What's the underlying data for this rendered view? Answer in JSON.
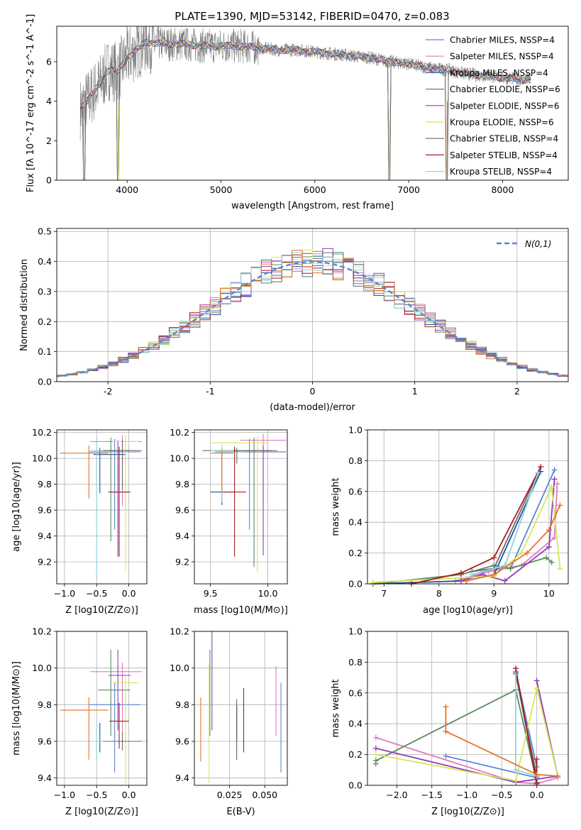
{
  "title": "PLATE=1390, MJD=53142, FIBERID=0470, z=0.083",
  "colors": [
    "#5b84d6",
    "#e377c2",
    "#1f4e9c",
    "#5a8a5e",
    "#8e3fb3",
    "#d7e558",
    "#6a6a6a",
    "#a81c1c",
    "#8fd4e0",
    "#e3762a"
  ],
  "chart_data": [
    {
      "type": "line",
      "id": "spectrum",
      "xlabel": "wavelength [Angstrom, rest frame]",
      "ylabel": "Flux [f_λ 10^-17 erg cm^-2 s^-1 A^-1]",
      "xlim": [
        3250,
        8700
      ],
      "ylim": [
        0,
        7.8
      ],
      "xticks": [
        4000,
        5000,
        6000,
        7000,
        8000
      ],
      "yticks": [
        0,
        2,
        4,
        6
      ],
      "grid": false,
      "legend_position": "right",
      "series": [
        {
          "name": "Chabrier MILES, N_SSP=4",
          "color": "#5b84d6"
        },
        {
          "name": "Salpeter MILES, N_SSP=4",
          "color": "#e377c2"
        },
        {
          "name": "Kroupa MILES, N_SSP=4",
          "color": "#3a66c0"
        },
        {
          "name": "Chabrier ELODIE, N_SSP=6",
          "color": "#5a8a5e"
        },
        {
          "name": "Salpeter ELODIE, N_SSP=6",
          "color": "#8e3fb3"
        },
        {
          "name": "Kroupa ELODIE, N_SSP=6",
          "color": "#d7e558"
        },
        {
          "name": "Chabrier STELIB, N_SSP=4",
          "color": "#6a6a6a"
        },
        {
          "name": "Salpeter STELIB, N_SSP=4",
          "color": "#a81c1c"
        },
        {
          "name": "Kroupa STELIB, N_SSP=4",
          "color": "#8fd4e0"
        }
      ],
      "continuum": {
        "x": [
          3500,
          3600,
          3700,
          3800,
          3900,
          4000,
          4100,
          4200,
          4400,
          4600,
          4800,
          5000,
          5200,
          5400,
          5600,
          5800,
          6000,
          6200,
          6400,
          6600,
          6800,
          7000,
          7200,
          7400,
          7600,
          7800,
          8000,
          8200,
          8300
        ],
        "y": [
          3.6,
          4.2,
          4.8,
          5.6,
          5.5,
          6.2,
          6.6,
          7.0,
          6.9,
          6.9,
          6.8,
          6.8,
          6.8,
          6.7,
          6.6,
          6.6,
          6.5,
          6.4,
          6.3,
          6.2,
          6.0,
          5.9,
          5.7,
          5.6,
          5.4,
          5.3,
          5.2,
          5.1,
          5.1
        ]
      },
      "dips": [
        {
          "x": 3540,
          "y": 0.0
        },
        {
          "x": 3900,
          "y": 0.0
        },
        {
          "x": 6790,
          "y": 0.0
        },
        {
          "x": 7410,
          "y": 0.0
        }
      ]
    },
    {
      "type": "step",
      "id": "residuals",
      "xlabel": "(data-model)/error",
      "ylabel": "Normed distribution",
      "xlim": [
        -2.5,
        2.5
      ],
      "ylim": [
        0,
        0.51
      ],
      "xticks": [
        -2,
        -1,
        0,
        1,
        2
      ],
      "yticks": [
        0.0,
        0.1,
        0.2,
        0.3,
        0.4,
        0.5
      ],
      "grid": true,
      "bin_width": 0.1,
      "legend": {
        "label": "N(0,1)",
        "position": "top-right",
        "color": "#5b84d6"
      }
    },
    {
      "type": "scatter",
      "id": "age-vs-Z",
      "xlabel": "Z [log10(Z/Z⊙)]",
      "ylabel": "age [log10(age/yr)]",
      "xlim": [
        -1.12,
        0.28
      ],
      "ylim": [
        9.03,
        10.22
      ],
      "xticks": [
        -1.0,
        -0.5,
        0.0
      ],
      "xticklabels": [
        "−1.0",
        "−0.5",
        "0.0"
      ],
      "yticks": [
        9.2,
        9.4,
        9.6,
        9.8,
        10.0,
        10.2
      ],
      "points": [
        {
          "x": -0.22,
          "y": 10.05,
          "xerr": [
            0.4,
            0.4
          ],
          "yerr": [
            0.6,
            0.1
          ],
          "color": "#5b84d6"
        },
        {
          "x": -0.1,
          "y": 10.13,
          "xerr": [
            0.5,
            0.3
          ],
          "yerr": [
            0.5,
            0.05
          ],
          "color": "#e377c2"
        },
        {
          "x": -0.45,
          "y": 10.03,
          "xerr": [
            0.1,
            0.4
          ],
          "yerr": [
            0.3,
            0.05
          ],
          "color": "#1f4e9c"
        },
        {
          "x": -0.28,
          "y": 10.06,
          "xerr": [
            0.2,
            0.3
          ],
          "yerr": [
            0.7,
            0.1
          ],
          "color": "#5a8a5e"
        },
        {
          "x": -0.17,
          "y": 9.74,
          "xerr": [
            0.15,
            0.2
          ],
          "yerr": [
            0.5,
            0.4
          ],
          "color": "#8e3fb3"
        },
        {
          "x": -0.05,
          "y": 10.13,
          "xerr": [
            0.2,
            0.2
          ],
          "yerr": [
            1.0,
            0.05
          ],
          "color": "#d7e558"
        },
        {
          "x": -0.1,
          "y": 10.06,
          "xerr": [
            0.3,
            0.3
          ],
          "yerr": [
            0.3,
            0.08
          ],
          "color": "#6a6a6a"
        },
        {
          "x": -0.15,
          "y": 9.74,
          "xerr": [
            0.15,
            0.15
          ],
          "yerr": [
            0.5,
            0.35
          ],
          "color": "#a81c1c"
        },
        {
          "x": -0.5,
          "y": 10.06,
          "xerr": [
            0.1,
            0.1
          ],
          "yerr": [
            1.0,
            0.1
          ],
          "color": "#8fd4e0"
        },
        {
          "x": -0.62,
          "y": 10.04,
          "xerr": [
            0.45,
            0.3
          ],
          "yerr": [
            0.35,
            0.06
          ],
          "color": "#e3762a"
        }
      ]
    },
    {
      "type": "scatter",
      "id": "age-vs-mass",
      "xlabel": "mass [log10(M/M⊙)]",
      "ylabel": "",
      "xlim": [
        9.36,
        10.17
      ],
      "ylim": [
        9.03,
        10.22
      ],
      "xticks": [
        9.5,
        10.0
      ],
      "xticklabels": [
        "9.5",
        "10.0"
      ],
      "yticks": [
        9.2,
        9.4,
        9.6,
        9.8,
        10.0,
        10.2
      ],
      "points": [
        {
          "x": 9.84,
          "y": 10.05,
          "xerr": [
            0.3,
            0.3
          ],
          "yerr": [
            0.6,
            0.1
          ],
          "color": "#5b84d6"
        },
        {
          "x": 9.96,
          "y": 10.14,
          "xerr": [
            0.2,
            0.2
          ],
          "yerr": [
            0.5,
            0.05
          ],
          "color": "#e377c2"
        },
        {
          "x": 9.6,
          "y": 9.74,
          "xerr": [
            0.1,
            0.1
          ],
          "yerr": [
            0.1,
            0.3
          ],
          "color": "#1f4e9c"
        },
        {
          "x": 9.88,
          "y": 10.06,
          "xerr": [
            0.25,
            0.2
          ],
          "yerr": [
            0.9,
            0.1
          ],
          "color": "#5a8a5e"
        },
        {
          "x": 9.96,
          "y": 10.05,
          "xerr": [
            0.15,
            0.2
          ],
          "yerr": [
            0.8,
            0.05
          ],
          "color": "#8e3fb3"
        },
        {
          "x": 9.91,
          "y": 10.12,
          "xerr": [
            0.4,
            0.1
          ],
          "yerr": [
            1.0,
            0.05
          ],
          "color": "#d7e558"
        },
        {
          "x": 9.73,
          "y": 10.06,
          "xerr": [
            0.3,
            0.3
          ],
          "yerr": [
            0.1,
            0.02
          ],
          "color": "#6a6a6a"
        },
        {
          "x": 9.71,
          "y": 9.74,
          "xerr": [
            0.1,
            0.1
          ],
          "yerr": [
            0.5,
            0.35
          ],
          "color": "#a81c1c"
        },
        {
          "x": 9.6,
          "y": 10.06,
          "xerr": [
            0.1,
            0.1
          ],
          "yerr": [
            0.4,
            0.05
          ],
          "color": "#8fd4e0"
        },
        {
          "x": 9.6,
          "y": 10.04,
          "xerr": [
            0.1,
            0.1
          ],
          "yerr": [
            0.3,
            0.03
          ],
          "color": "#e3762a"
        }
      ]
    },
    {
      "type": "line",
      "id": "mass-weight-vs-age",
      "xlabel": "age [log10(age/yr)]",
      "ylabel": "mass weight",
      "xlim": [
        6.7,
        10.35
      ],
      "ylim": [
        0,
        1.0
      ],
      "xticks": [
        7,
        8,
        9,
        10
      ],
      "xticklabels": [
        "7",
        "8",
        "9",
        "10"
      ],
      "yticks": [
        0.0,
        0.2,
        0.4,
        0.6,
        0.8,
        1.0
      ],
      "grid": true,
      "series": [
        {
          "color": "#5b84d6",
          "x": [
            8.5,
            9.0,
            9.3,
            10.1
          ],
          "y": [
            0.03,
            0.1,
            0.1,
            0.74
          ]
        },
        {
          "color": "#e377c2",
          "x": [
            8.3,
            8.9,
            9.5,
            10.1,
            10.15
          ],
          "y": [
            0.02,
            0.08,
            0.12,
            0.3,
            0.65
          ]
        },
        {
          "color": "#1f4e9c",
          "x": [
            6.8,
            8.5,
            9.0,
            9.85
          ],
          "y": [
            0.0,
            0.02,
            0.06,
            0.73
          ]
        },
        {
          "color": "#5a8a5e",
          "x": [
            6.8,
            8.4,
            9.0,
            9.3,
            9.95,
            10.05
          ],
          "y": [
            0.0,
            0.06,
            0.12,
            0.1,
            0.17,
            0.14
          ]
        },
        {
          "color": "#8e3fb3",
          "x": [
            8.4,
            8.8,
            9.2,
            10.0,
            10.1
          ],
          "y": [
            0.02,
            0.06,
            0.02,
            0.24,
            0.68
          ]
        },
        {
          "color": "#d7e558",
          "x": [
            6.8,
            9.0,
            9.5,
            10.05,
            10.2
          ],
          "y": [
            0.01,
            0.05,
            0.2,
            0.63,
            0.1
          ]
        },
        {
          "color": "#6a6a6a",
          "x": [
            8.6,
            9.0,
            9.8
          ],
          "y": [
            0.08,
            0.1,
            0.72
          ]
        },
        {
          "color": "#a81c1c",
          "x": [
            7.5,
            8.4,
            9.0,
            9.85
          ],
          "y": [
            0.0,
            0.07,
            0.17,
            0.76
          ]
        },
        {
          "color": "#8fd4e0",
          "x": [
            8.6,
            9.2,
            9.8
          ],
          "y": [
            0.06,
            0.12,
            0.72
          ]
        },
        {
          "color": "#e3762a",
          "x": [
            8.5,
            9.0,
            9.6,
            10.0,
            10.2
          ],
          "y": [
            0.02,
            0.06,
            0.2,
            0.35,
            0.51
          ]
        }
      ]
    },
    {
      "type": "scatter",
      "id": "mass-vs-Z",
      "xlabel": "Z [log10(Z/Z⊙)]",
      "ylabel": "mass [log10(M/M⊙)]",
      "xlim": [
        -1.12,
        0.28
      ],
      "ylim": [
        9.36,
        10.2
      ],
      "xticks": [
        -1.0,
        -0.5,
        0.0
      ],
      "xticklabels": [
        "−1.0",
        "−0.5",
        "0.0"
      ],
      "yticks": [
        9.4,
        9.6,
        9.8,
        10.0,
        10.2
      ],
      "points": [
        {
          "x": -0.22,
          "y": 9.8,
          "xerr": [
            0.4,
            0.4
          ],
          "yerr": [
            0.37,
            0.12
          ],
          "color": "#5b84d6"
        },
        {
          "x": -0.1,
          "y": 9.98,
          "xerr": [
            0.5,
            0.3
          ],
          "yerr": [
            0.35,
            0.05
          ],
          "color": "#e377c2"
        },
        {
          "x": -0.45,
          "y": 9.6,
          "xerr": [
            0.1,
            0.4
          ],
          "yerr": [
            0.06,
            0.1
          ],
          "color": "#1f4e9c"
        },
        {
          "x": -0.28,
          "y": 9.88,
          "xerr": [
            0.2,
            0.3
          ],
          "yerr": [
            0.25,
            0.22
          ],
          "color": "#5a8a5e"
        },
        {
          "x": -0.17,
          "y": 9.96,
          "xerr": [
            0.15,
            0.2
          ],
          "yerr": [
            0.3,
            0.14
          ],
          "color": "#8e3fb3"
        },
        {
          "x": -0.05,
          "y": 9.92,
          "xerr": [
            0.2,
            0.2
          ],
          "yerr": [
            0.55,
            0.05
          ],
          "color": "#d7e558"
        },
        {
          "x": -0.1,
          "y": 9.6,
          "xerr": [
            0.3,
            0.3
          ],
          "yerr": [
            0.05,
            0.05
          ],
          "color": "#6a6a6a"
        },
        {
          "x": -0.15,
          "y": 9.71,
          "xerr": [
            0.15,
            0.15
          ],
          "yerr": [
            0.15,
            0.1
          ],
          "color": "#a81c1c"
        },
        {
          "x": -0.5,
          "y": 9.6,
          "xerr": [
            0.1,
            0.1
          ],
          "yerr": [
            0.1,
            0.1
          ],
          "color": "#8fd4e0"
        },
        {
          "x": -0.62,
          "y": 9.77,
          "xerr": [
            0.45,
            0.3
          ],
          "yerr": [
            0.27,
            0.07
          ],
          "color": "#e3762a"
        }
      ]
    },
    {
      "type": "scatter",
      "id": "mass-vs-EBV",
      "xlabel": "E(B-V)",
      "ylabel": "",
      "xlim": [
        0.0,
        0.066
      ],
      "ylim": [
        9.36,
        10.2
      ],
      "xticks": [
        0.025,
        0.05
      ],
      "xticklabels": [
        "0.025",
        "0.050"
      ],
      "yticks": [
        9.4,
        9.6,
        9.8,
        10.0,
        10.2
      ],
      "points": [
        {
          "x": 0.0615,
          "y": 9.8,
          "yerr": [
            0.37,
            0.12
          ],
          "color": "#5b84d6"
        },
        {
          "x": 0.058,
          "y": 9.98,
          "yerr": [
            0.35,
            0.03
          ],
          "color": "#e377c2"
        },
        {
          "x": 0.03,
          "y": 9.6,
          "yerr": [
            0.1,
            0.1
          ],
          "color": "#1f4e9c"
        },
        {
          "x": 0.011,
          "y": 9.88,
          "yerr": [
            0.25,
            0.22
          ],
          "color": "#5a8a5e"
        },
        {
          "x": 0.0125,
          "y": 9.96,
          "yerr": [
            0.3,
            0.34
          ],
          "color": "#8e3fb3"
        },
        {
          "x": 0.0105,
          "y": 9.92,
          "yerr": [
            0.55,
            0.1
          ],
          "color": "#d7e558"
        },
        {
          "x": 0.03,
          "y": 9.65,
          "yerr": [
            0.15,
            0.18
          ],
          "color": "#6a6a6a"
        },
        {
          "x": 0.035,
          "y": 9.71,
          "yerr": [
            0.17,
            0.18
          ],
          "color": "#a81c1c"
        },
        {
          "x": 0.0305,
          "y": 9.7,
          "yerr": [
            0.1,
            0.1
          ],
          "color": "#8fd4e0"
        },
        {
          "x": 0.0045,
          "y": 9.72,
          "yerr": [
            0.23,
            0.12
          ],
          "color": "#e3762a"
        }
      ]
    },
    {
      "type": "line",
      "id": "mass-weight-vs-Z",
      "xlabel": "Z [log10(Z/Z⊙)]",
      "ylabel": "mass weight",
      "xlim": [
        -2.42,
        0.45
      ],
      "ylim": [
        0,
        1.0
      ],
      "xticks": [
        -2.0,
        -1.5,
        -1.0,
        -0.5,
        0.0
      ],
      "xticklabels": [
        "−2.0",
        "−1.5",
        "−1.0",
        "−0.5",
        "0.0"
      ],
      "yticks": [
        0.0,
        0.2,
        0.4,
        0.6,
        0.8,
        1.0
      ],
      "grid": true,
      "series": [
        {
          "color": "#5b84d6",
          "x": [
            -1.3,
            0.0,
            0.0,
            -0.3
          ],
          "y": [
            0.19,
            0.05,
            0.12,
            0.74
          ]
        },
        {
          "color": "#e377c2",
          "x": [
            -2.3,
            -0.3,
            0.0,
            0.3
          ],
          "y": [
            0.31,
            0.02,
            0.01,
            0.05
          ]
        },
        {
          "color": "#1f4e9c",
          "x": [
            -0.3,
            0.0
          ],
          "y": [
            0.73,
            0.02
          ]
        },
        {
          "color": "#5a8a5e",
          "x": [
            -2.3,
            -2.3,
            -0.3,
            0.0
          ],
          "y": [
            0.14,
            0.16,
            0.62,
            0.02
          ]
        },
        {
          "color": "#8e3fb3",
          "x": [
            -2.3,
            -0.3,
            0.3,
            0.0
          ],
          "y": [
            0.24,
            0.02,
            0.06,
            0.68
          ]
        },
        {
          "color": "#d7e558",
          "x": [
            -2.3,
            -0.3,
            0.0,
            0.3
          ],
          "y": [
            0.2,
            0.03,
            0.63,
            0.06
          ]
        },
        {
          "color": "#6a6a6a",
          "x": [
            -0.3,
            0.0
          ],
          "y": [
            0.72,
            0.06
          ]
        },
        {
          "color": "#a81c1c",
          "x": [
            -0.3,
            0.0,
            0.0
          ],
          "y": [
            0.76,
            0.01,
            0.17
          ]
        },
        {
          "color": "#8fd4e0",
          "x": [
            -0.3,
            -0.3,
            0.0
          ],
          "y": [
            0.72,
            0.1,
            0.06
          ]
        },
        {
          "color": "#e3762a",
          "x": [
            -1.3,
            -1.3,
            0.0,
            0.3
          ],
          "y": [
            0.51,
            0.35,
            0.07,
            0.06
          ]
        }
      ]
    }
  ]
}
